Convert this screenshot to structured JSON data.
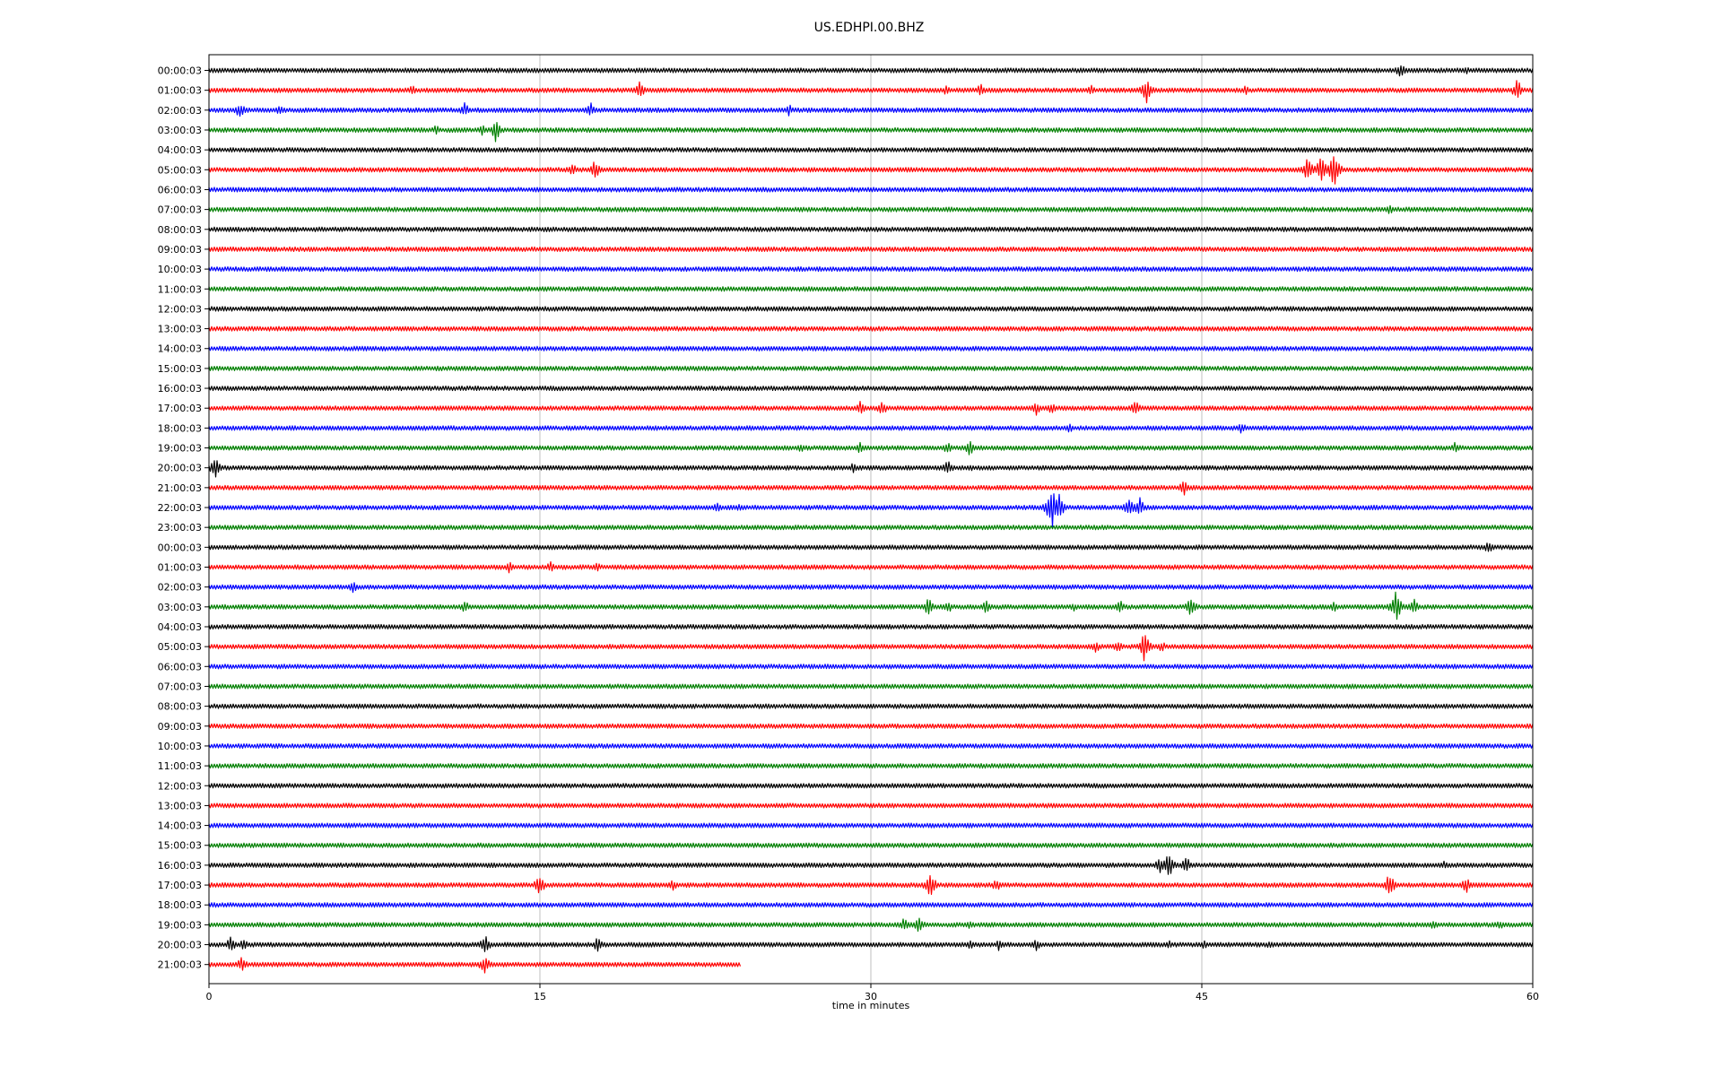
{
  "chart_data": {
    "type": "line",
    "title": "US.EDHPI.00.BHZ",
    "xlabel": "time in minutes",
    "ylabel": "",
    "xlim": [
      0,
      60
    ],
    "x_ticks": [
      0,
      15,
      30,
      45,
      60
    ],
    "grid": "vertical",
    "legend": "none",
    "colors_cycle": [
      "#000000",
      "#ff0000",
      "#0000ff",
      "#008000"
    ],
    "row_labels": [
      "00:00:03",
      "01:00:03",
      "02:00:03",
      "03:00:03",
      "04:00:03",
      "05:00:03",
      "06:00:03",
      "07:00:03",
      "08:00:03",
      "09:00:03",
      "10:00:03",
      "11:00:03",
      "12:00:03",
      "13:00:03",
      "14:00:03",
      "15:00:03",
      "16:00:03",
      "17:00:03",
      "18:00:03",
      "19:00:03",
      "20:00:03",
      "21:00:03",
      "22:00:03",
      "23:00:03",
      "00:00:03",
      "01:00:03",
      "02:00:03",
      "03:00:03",
      "04:00:03",
      "05:00:03",
      "06:00:03",
      "07:00:03",
      "08:00:03",
      "09:00:03",
      "10:00:03",
      "11:00:03",
      "12:00:03",
      "13:00:03",
      "14:00:03",
      "15:00:03",
      "16:00:03",
      "17:00:03",
      "18:00:03",
      "19:00:03",
      "20:00:03",
      "21:00:03"
    ],
    "last_trace_end_minute": 24.1,
    "events": [
      [
        0,
        54.0,
        9
      ],
      [
        0,
        57.0,
        5
      ],
      [
        1,
        9.2,
        7
      ],
      [
        1,
        19.5,
        12
      ],
      [
        1,
        33.4,
        6
      ],
      [
        1,
        35.0,
        9
      ],
      [
        1,
        40.0,
        7
      ],
      [
        1,
        42.5,
        16
      ],
      [
        1,
        47.0,
        6
      ],
      [
        1,
        59.3,
        13
      ],
      [
        2,
        1.4,
        10
      ],
      [
        2,
        3.2,
        6
      ],
      [
        2,
        11.6,
        9
      ],
      [
        2,
        17.3,
        9
      ],
      [
        2,
        26.3,
        7
      ],
      [
        3,
        10.3,
        6
      ],
      [
        3,
        12.4,
        7
      ],
      [
        3,
        13.0,
        14
      ],
      [
        5,
        16.5,
        8
      ],
      [
        5,
        17.5,
        12
      ],
      [
        5,
        49.8,
        15
      ],
      [
        5,
        50.4,
        17
      ],
      [
        5,
        51.0,
        24
      ],
      [
        7,
        53.5,
        6
      ],
      [
        17,
        29.5,
        9
      ],
      [
        17,
        30.5,
        10
      ],
      [
        17,
        37.5,
        8
      ],
      [
        17,
        38.2,
        7
      ],
      [
        17,
        42.0,
        10
      ],
      [
        18,
        39.0,
        6
      ],
      [
        18,
        46.8,
        7
      ],
      [
        19,
        26.8,
        6
      ],
      [
        19,
        29.5,
        7
      ],
      [
        19,
        33.5,
        8
      ],
      [
        19,
        34.5,
        10
      ],
      [
        19,
        56.5,
        8
      ],
      [
        20,
        0.3,
        14
      ],
      [
        20,
        29.2,
        7
      ],
      [
        20,
        33.5,
        9
      ],
      [
        20,
        34.5,
        5
      ],
      [
        21,
        44.2,
        10
      ],
      [
        22,
        23.0,
        7
      ],
      [
        22,
        24.0,
        6
      ],
      [
        22,
        38.2,
        26
      ],
      [
        22,
        38.5,
        18
      ],
      [
        22,
        41.7,
        14
      ],
      [
        22,
        42.2,
        12
      ],
      [
        24,
        58.0,
        8
      ],
      [
        25,
        13.6,
        7
      ],
      [
        25,
        15.5,
        8
      ],
      [
        25,
        17.6,
        6
      ],
      [
        26,
        6.5,
        8
      ],
      [
        27,
        11.6,
        8
      ],
      [
        27,
        32.6,
        11
      ],
      [
        27,
        33.5,
        8
      ],
      [
        27,
        35.2,
        9
      ],
      [
        27,
        39.2,
        6
      ],
      [
        27,
        41.3,
        9
      ],
      [
        27,
        44.5,
        12
      ],
      [
        27,
        51.0,
        7
      ],
      [
        27,
        53.8,
        19
      ],
      [
        27,
        54.6,
        11
      ],
      [
        29,
        40.2,
        8
      ],
      [
        29,
        41.2,
        8
      ],
      [
        29,
        42.4,
        18
      ],
      [
        29,
        43.2,
        7
      ],
      [
        40,
        43.1,
        10
      ],
      [
        40,
        43.5,
        18
      ],
      [
        40,
        44.3,
        10
      ],
      [
        40,
        56.0,
        5
      ],
      [
        41,
        15.0,
        14
      ],
      [
        41,
        21.0,
        8
      ],
      [
        41,
        32.7,
        17
      ],
      [
        41,
        35.7,
        8
      ],
      [
        41,
        53.5,
        15
      ],
      [
        41,
        57.0,
        10
      ],
      [
        43,
        31.5,
        8
      ],
      [
        43,
        32.2,
        10
      ],
      [
        43,
        34.5,
        6
      ],
      [
        43,
        55.5,
        6
      ],
      [
        43,
        58.5,
        6
      ],
      [
        44,
        1.0,
        10
      ],
      [
        44,
        1.6,
        8
      ],
      [
        44,
        12.5,
        14
      ],
      [
        44,
        17.6,
        9
      ],
      [
        44,
        34.5,
        6
      ],
      [
        44,
        35.8,
        7
      ],
      [
        44,
        37.5,
        7
      ],
      [
        44,
        43.5,
        6
      ],
      [
        44,
        45.1,
        6
      ],
      [
        44,
        48.1,
        5
      ],
      [
        45,
        1.5,
        10
      ],
      [
        45,
        12.5,
        12
      ]
    ]
  }
}
